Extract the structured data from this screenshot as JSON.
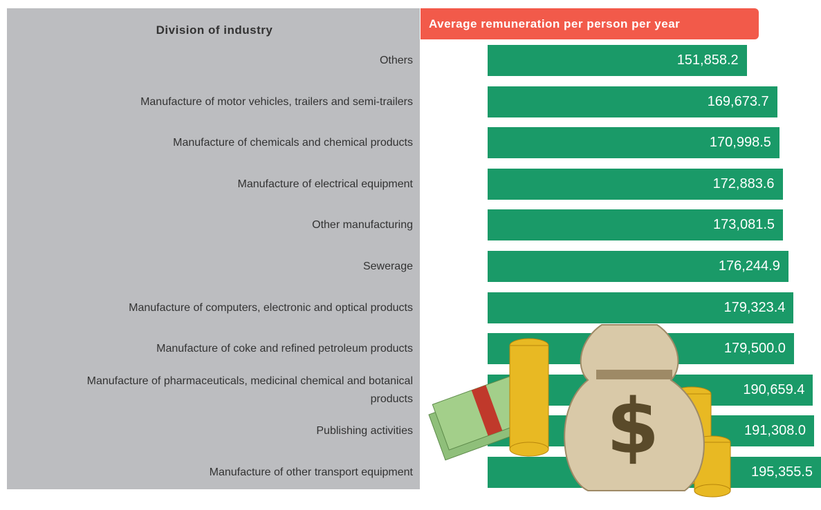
{
  "chart_data": {
    "type": "bar",
    "orientation": "horizontal",
    "category_header": "Division of industry",
    "value_header": "Average remuneration per person per year",
    "color": "#1a9a68",
    "categories": [
      "Others",
      "Manufacture of motor vehicles, trailers and semi-trailers",
      "Manufacture of chemicals and chemical products",
      "Manufacture of electrical equipment",
      "Other manufacturing",
      "Sewerage",
      "Manufacture of computers, electronic and optical products",
      "Manufacture of coke and refined petroleum products",
      "Manufacture of pharmaceuticals, medicinal chemical and botanical products",
      "Publishing activities",
      "Manufacture of other transport equipment"
    ],
    "values": [
      151858.2,
      169673.7,
      170998.5,
      172883.6,
      173081.5,
      176244.9,
      179323.4,
      179500.0,
      190659.4,
      191308.0,
      195355.5
    ],
    "value_labels": [
      "151,858.2",
      "169,673.7",
      "170,998.5",
      "172,883.6",
      "173,081.5",
      "176,244.9",
      "179,323.4",
      "179,500.0",
      "190,659.4",
      "191,308.0",
      "195,355.5"
    ]
  }
}
